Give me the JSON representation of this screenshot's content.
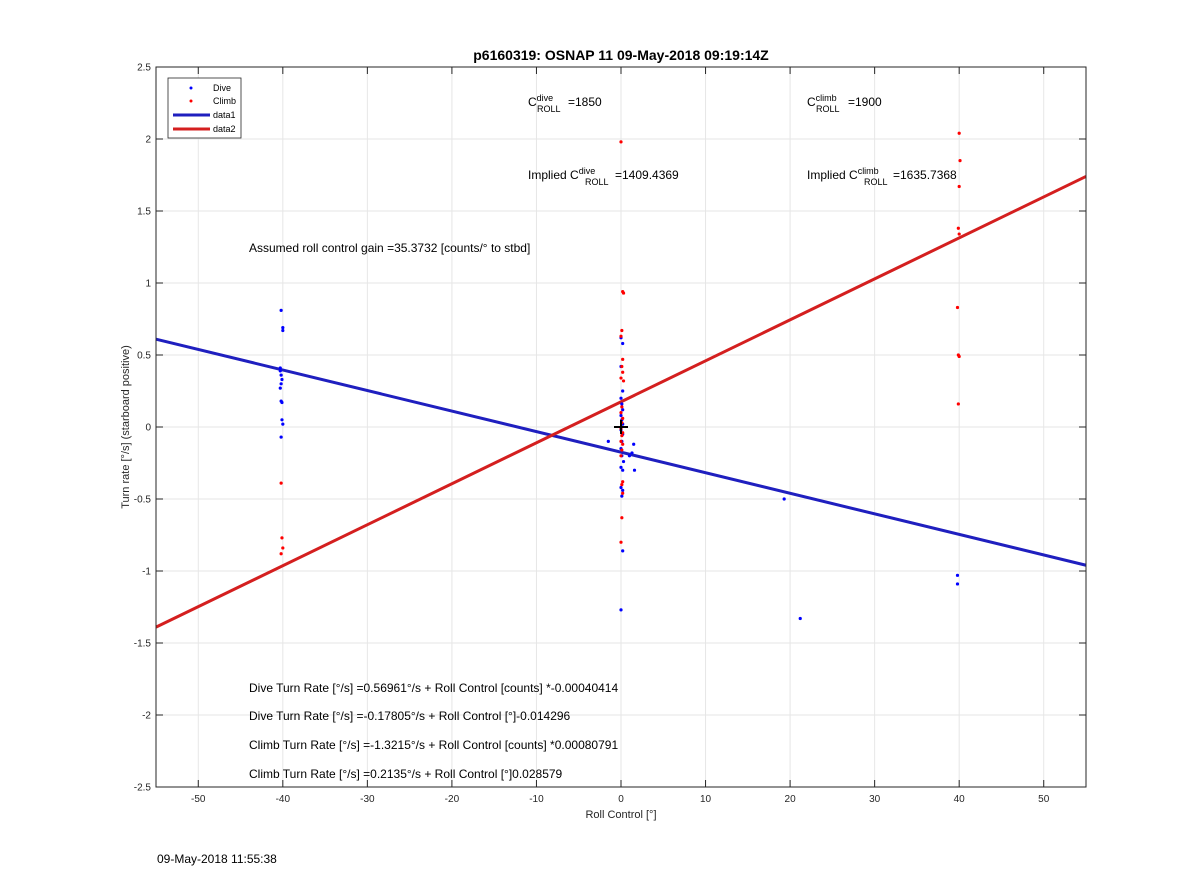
{
  "chart_data": {
    "type": "scatter",
    "title": "p6160319: OSNAP 11 09-May-2018 09:19:14Z",
    "xlabel": "Roll Control [°]",
    "ylabel": "Turn rate [°/s] (starboard positive)",
    "xlim": [
      -55,
      55
    ],
    "ylim": [
      -2.5,
      2.5
    ],
    "xticks": [
      -50,
      -40,
      -30,
      -20,
      -10,
      0,
      10,
      20,
      30,
      40,
      50
    ],
    "yticks": [
      -2.5,
      -2,
      -1.5,
      -1,
      -0.5,
      0,
      0.5,
      1,
      1.5,
      2,
      2.5
    ],
    "grid": true,
    "legend_position": "top-left",
    "colors": {
      "dive": "#0000ff",
      "climb": "#ff0000",
      "data1": "#1f1fbf",
      "data2": "#d41f1f",
      "axes": "#262626"
    },
    "series": [
      {
        "name": "Dive",
        "kind": "points",
        "color": "#0000ff",
        "points": [
          [
            -40.2,
            0.81
          ],
          [
            -40.0,
            0.69
          ],
          [
            -40.0,
            0.67
          ],
          [
            -40.3,
            0.41
          ],
          [
            -40.3,
            0.39
          ],
          [
            -40.2,
            0.36
          ],
          [
            -40.1,
            0.33
          ],
          [
            -40.2,
            0.3
          ],
          [
            -40.3,
            0.27
          ],
          [
            -40.2,
            0.18
          ],
          [
            -40.1,
            0.17
          ],
          [
            -40.1,
            0.05
          ],
          [
            -40.0,
            0.02
          ],
          [
            -40.2,
            -0.07
          ],
          [
            0.0,
            0.62
          ],
          [
            0.2,
            0.58
          ],
          [
            0.0,
            0.42
          ],
          [
            0.2,
            0.25
          ],
          [
            0.0,
            0.2
          ],
          [
            0.1,
            0.16
          ],
          [
            0.2,
            0.12
          ],
          [
            0.0,
            0.08
          ],
          [
            0.1,
            0.05
          ],
          [
            0.2,
            0.02
          ],
          [
            0.0,
            -0.02
          ],
          [
            0.2,
            -0.05
          ],
          [
            0.1,
            -0.1
          ],
          [
            0.0,
            -0.15
          ],
          [
            0.1,
            -0.2
          ],
          [
            0.3,
            -0.24
          ],
          [
            0.0,
            -0.28
          ],
          [
            0.2,
            -0.3
          ],
          [
            0.0,
            -0.42
          ],
          [
            0.2,
            -0.44
          ],
          [
            0.1,
            -0.48
          ],
          [
            0.2,
            -0.86
          ],
          [
            0.0,
            -1.27
          ],
          [
            -1.5,
            -0.1
          ],
          [
            1.0,
            -0.2
          ],
          [
            1.3,
            -0.18
          ],
          [
            1.5,
            -0.12
          ],
          [
            1.6,
            -0.3
          ],
          [
            19.3,
            -0.5
          ],
          [
            21.2,
            -1.33
          ],
          [
            39.8,
            -1.03
          ],
          [
            39.8,
            -1.09
          ]
        ]
      },
      {
        "name": "Climb",
        "kind": "points",
        "color": "#ff0000",
        "points": [
          [
            -40.2,
            -0.39
          ],
          [
            -40.1,
            -0.77
          ],
          [
            -40.0,
            -0.84
          ],
          [
            -40.2,
            -0.88
          ],
          [
            0.0,
            1.98
          ],
          [
            0.2,
            0.94
          ],
          [
            0.3,
            0.93
          ],
          [
            0.1,
            0.67
          ],
          [
            0.0,
            0.63
          ],
          [
            0.2,
            0.47
          ],
          [
            0.1,
            0.42
          ],
          [
            0.2,
            0.38
          ],
          [
            0.0,
            0.34
          ],
          [
            0.3,
            0.32
          ],
          [
            0.1,
            0.14
          ],
          [
            0.0,
            0.1
          ],
          [
            0.2,
            0.06
          ],
          [
            0.1,
            0.03
          ],
          [
            0.0,
            -0.01
          ],
          [
            0.2,
            -0.04
          ],
          [
            0.1,
            -0.06
          ],
          [
            0.0,
            -0.1
          ],
          [
            0.2,
            -0.12
          ],
          [
            0.1,
            -0.16
          ],
          [
            0.0,
            -0.2
          ],
          [
            0.2,
            -0.38
          ],
          [
            0.1,
            -0.4
          ],
          [
            0.2,
            -0.46
          ],
          [
            0.1,
            -0.63
          ],
          [
            0.0,
            -0.8
          ],
          [
            40.0,
            2.04
          ],
          [
            40.1,
            1.85
          ],
          [
            40.0,
            1.67
          ],
          [
            39.9,
            1.38
          ],
          [
            40.0,
            1.34
          ],
          [
            39.8,
            0.83
          ],
          [
            39.9,
            0.5
          ],
          [
            40.0,
            0.49
          ],
          [
            39.9,
            0.16
          ]
        ]
      },
      {
        "name": "data1",
        "kind": "line",
        "color": "#1f1fbf",
        "x": [
          -55,
          55
        ],
        "y": [
          0.61,
          -0.96
        ]
      },
      {
        "name": "data2",
        "kind": "line",
        "color": "#d41f1f",
        "x": [
          -55,
          55
        ],
        "y": [
          -1.39,
          1.74
        ]
      }
    ],
    "marker": {
      "x": 0,
      "y": 0,
      "symbol": "+"
    },
    "annotations": {
      "c_dive_base": "C",
      "c_dive_sup": "dive",
      "c_dive_sub": "ROLL",
      "c_dive_value": "=1850",
      "c_climb_base": "C",
      "c_climb_sup": "climb",
      "c_climb_sub": "ROLL",
      "c_climb_value": "=1900",
      "implied_dive_prefix": "Implied C",
      "implied_dive_sup": "dive",
      "implied_dive_sub": "ROLL",
      "implied_dive_value": "=1409.4369",
      "implied_climb_prefix": "Implied C",
      "implied_climb_sup": "climb",
      "implied_climb_sub": "ROLL",
      "implied_climb_value": "=1635.7368",
      "gain": "Assumed roll control gain =35.3732 [counts/° to stbd]",
      "eq1": "Dive Turn Rate [°/s] =0.56961°/s + Roll Control [counts] *-0.00040414",
      "eq2": "Dive Turn Rate [°/s] =-0.17805°/s + Roll Control [°]-0.014296",
      "eq3": "Climb Turn Rate [°/s] =-1.3215°/s + Roll Control [counts] *0.00080791",
      "eq4": "Climb Turn Rate [°/s] =0.2135°/s + Roll Control [°]0.028579"
    }
  },
  "timestamp": "09-May-2018 11:55:38"
}
